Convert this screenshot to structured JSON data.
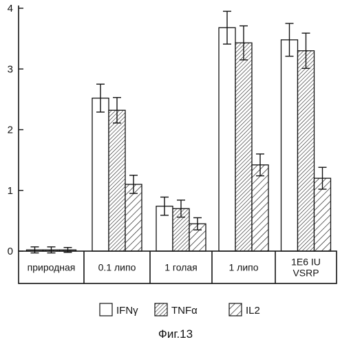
{
  "caption": "Фиг.13",
  "chart_data": {
    "type": "bar",
    "title": "",
    "xlabel": "",
    "ylabel": "",
    "ylim": [
      0,
      4
    ],
    "yticks": [
      0,
      1,
      2,
      3,
      4
    ],
    "grid": false,
    "legend_position": "bottom",
    "categories": [
      [
        "природная"
      ],
      [
        "0.1 липо"
      ],
      [
        "1 голая"
      ],
      [
        "1 липо"
      ],
      [
        "1E6 IU",
        "VSRP"
      ]
    ],
    "series": [
      {
        "name": "IFNγ",
        "fill": "white",
        "values": [
          0.02,
          2.52,
          0.74,
          3.68,
          3.48
        ],
        "errors": [
          0.05,
          0.23,
          0.15,
          0.27,
          0.27
        ]
      },
      {
        "name": "TNFα",
        "fill": "dense-hatch",
        "values": [
          0.02,
          2.32,
          0.7,
          3.43,
          3.3
        ],
        "errors": [
          0.05,
          0.21,
          0.14,
          0.28,
          0.29
        ]
      },
      {
        "name": "IL2",
        "fill": "sparse-hatch",
        "values": [
          0.02,
          1.1,
          0.45,
          1.42,
          1.2
        ],
        "errors": [
          0.04,
          0.15,
          0.1,
          0.18,
          0.18
        ]
      }
    ],
    "colors": {
      "ink": "#111111",
      "background": "#ffffff"
    }
  }
}
